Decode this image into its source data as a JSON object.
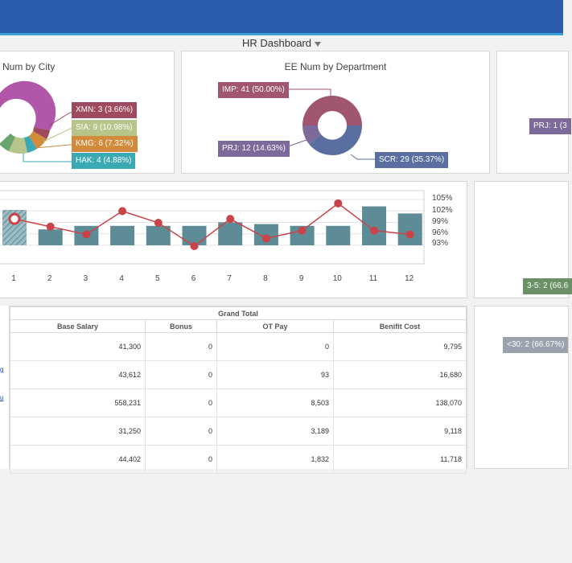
{
  "header": {
    "dashboard_title": "HR Dashboard",
    "filter_icon": "funnel-icon"
  },
  "city_panel": {
    "title": "Num by City",
    "labels": [
      "XMN: 3 (3.66%)",
      "SIA: 9 (10.98%)",
      "KMG: 6 (7.32%)",
      "HAK: 4 (4.88%)"
    ],
    "colors": {
      "XMN": "#9e4a5f",
      "SIA": "#b7c48a",
      "KMG": "#d18b3a",
      "HAK": "#3aa9b4",
      "main": "#b156a8"
    }
  },
  "dept_panel": {
    "title": "EE Num by Department",
    "labels": {
      "imp": "IMP: 41 (50.00%)",
      "prj": "PRJ: 12 (14.63%)",
      "scr": "SCR: 29 (35.37%)"
    },
    "colors": {
      "imp": "#a05670",
      "prj": "#7d6a9a",
      "scr": "#5a6fa0"
    }
  },
  "right_top_panel": {
    "label": "PRJ: 1 (3"
  },
  "chart_data": {
    "type": "bar",
    "categories": [
      "1",
      "2",
      "3",
      "4",
      "5",
      "6",
      "7",
      "8",
      "9",
      "10",
      "11",
      "12"
    ],
    "series": [
      {
        "values": [
          100,
          89,
          91,
          91,
          91,
          91,
          93,
          92,
          91,
          91,
          102,
          98
        ]
      },
      {
        "values": [
          100,
          98,
          96,
          102,
          99,
          93,
          100,
          95,
          97,
          104,
          97,
          96
        ]
      }
    ],
    "y2_ticks": [
      "105%",
      "102%",
      "99%",
      "96%",
      "93%"
    ],
    "colors": {
      "bar": "#5e8c96",
      "line": "#c8444a",
      "highlight": "#7fa6b0"
    }
  },
  "right_mid_panel": {
    "label": "3-5: 2 (66.6"
  },
  "right_bottom_panel": {
    "label": "<30: 2 (66.67%)"
  },
  "table": {
    "group_header": "Grand Total",
    "columns": [
      "Base Salary",
      "Bonus",
      "OT Pay",
      "Benifit Cost"
    ],
    "rows": [
      [
        "41,300",
        "0",
        "0",
        "9,795"
      ],
      [
        "43,612",
        "0",
        "93",
        "16,680"
      ],
      [
        "558,231",
        "0",
        "8,503",
        "138,070"
      ],
      [
        "31,250",
        "0",
        "3,189",
        "9,118"
      ],
      [
        "44,402",
        "0",
        "1,832",
        "11,718"
      ]
    ],
    "left_links": [
      "g",
      "u"
    ]
  }
}
